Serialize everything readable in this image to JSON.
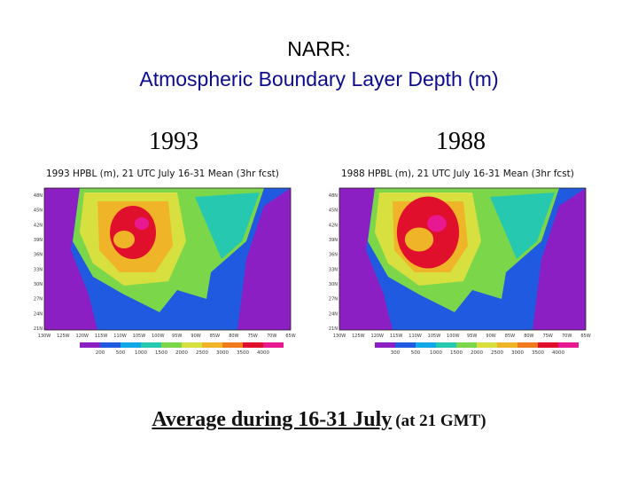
{
  "title": {
    "line1": "NARR:",
    "line2": "Atmospheric Boundary Layer Depth (m)"
  },
  "panels": [
    {
      "year": "1993",
      "caption": "1993 HPBL (m), 21 UTC July 16-31 Mean (3hr fcst)",
      "lat_labels": [
        "48N",
        "45N",
        "42N",
        "39N",
        "36N",
        "33N",
        "30N",
        "27N",
        "24N",
        "21N"
      ],
      "lon_labels": [
        "130W",
        "125W",
        "120W",
        "115W",
        "110W",
        "105W",
        "100W",
        "95W",
        "90W",
        "85W",
        "80W",
        "75W",
        "70W",
        "65W"
      ],
      "legend_values": [
        "200",
        "500",
        "1000",
        "1500",
        "2000",
        "2500",
        "3000",
        "3500",
        "4000"
      ]
    },
    {
      "year": "1988",
      "caption": "1988 HPBL (m), 21 UTC July 16-31 Mean (3hr fcst)",
      "lat_labels": [
        "48N",
        "45N",
        "42N",
        "39N",
        "36N",
        "33N",
        "30N",
        "27N",
        "24N",
        "21N"
      ],
      "lon_labels": [
        "130W",
        "125W",
        "120W",
        "115W",
        "110W",
        "105W",
        "100W",
        "95W",
        "90W",
        "85W",
        "80W",
        "75W",
        "70W",
        "65W"
      ],
      "legend_values": [
        "300",
        "500",
        "1000",
        "1500",
        "2000",
        "2500",
        "3000",
        "3500",
        "4000"
      ]
    }
  ],
  "legend_colors": [
    "#8c1fc4",
    "#1f5ae0",
    "#12a8e8",
    "#27c8b0",
    "#7cd64a",
    "#d8e040",
    "#f0b428",
    "#f07a1e",
    "#e0102c",
    "#e81890"
  ],
  "footer": {
    "main": "Average during 16-31 July",
    "sub": "(at 21 GMT)"
  }
}
